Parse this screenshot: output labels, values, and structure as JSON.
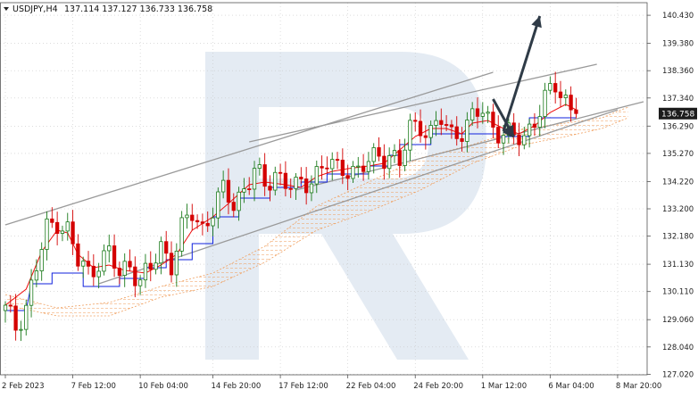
{
  "header": {
    "symbol_label": "USDJPY,H4",
    "ohlc_text": "137.114 137.127 136.733 136.758"
  },
  "colors": {
    "bull_candle": "#1a7a1a",
    "bear_candle": "#d40000",
    "tenkan_sen": "#ee1111",
    "kijun_sen": "#1122dd",
    "kumo": "#f0a060",
    "channel_lines": "#9a9a9a",
    "forecast_arrows": "#2f3b47",
    "price_badge": "#1c1c1c",
    "watermark": "#e4ebf3"
  },
  "chart_data": {
    "type": "candlestick",
    "instrument": "USDJPY",
    "timeframe": "H4",
    "last_price": "136.758",
    "ylim": [
      127.0,
      140.9
    ],
    "y_ticks": [
      "127.020",
      "128.040",
      "129.060",
      "130.110",
      "131.130",
      "132.180",
      "133.200",
      "134.220",
      "135.270",
      "136.290",
      "137.340",
      "138.360",
      "139.380",
      "140.430"
    ],
    "x_ticks": [
      "2 Feb 2023",
      "7 Feb 12:00",
      "10 Feb 04:00",
      "14 Feb 20:00",
      "17 Feb 12:00",
      "22 Feb 04:00",
      "24 Feb 20:00",
      "1 Mar 12:00",
      "6 Mar 04:00",
      "8 Mar 20:00"
    ],
    "close_path": [
      [
        0,
        129.4
      ],
      [
        2,
        128.8
      ],
      [
        4,
        129.6
      ],
      [
        6,
        131.0
      ],
      [
        8,
        132.4
      ],
      [
        10,
        132.8
      ],
      [
        12,
        132.4
      ],
      [
        14,
        131.2
      ],
      [
        16,
        130.8
      ],
      [
        18,
        131.3
      ],
      [
        20,
        131.5
      ],
      [
        22,
        130.7
      ],
      [
        24,
        131.2
      ],
      [
        26,
        130.5
      ],
      [
        28,
        130.9
      ],
      [
        30,
        131.8
      ],
      [
        32,
        131.2
      ],
      [
        34,
        132.4
      ],
      [
        36,
        133.0
      ],
      [
        38,
        132.5
      ],
      [
        40,
        133.2
      ],
      [
        42,
        133.8
      ],
      [
        44,
        133.4
      ],
      [
        46,
        134.0
      ],
      [
        48,
        134.6
      ],
      [
        50,
        134.0
      ],
      [
        52,
        134.6
      ],
      [
        54,
        134.2
      ],
      [
        56,
        133.9
      ],
      [
        58,
        134.2
      ],
      [
        60,
        134.6
      ],
      [
        62,
        134.9
      ],
      [
        64,
        134.6
      ],
      [
        66,
        134.8
      ],
      [
        68,
        134.6
      ],
      [
        70,
        134.9
      ],
      [
        72,
        135.2
      ],
      [
        74,
        135.3
      ],
      [
        76,
        134.8
      ],
      [
        78,
        136.2
      ],
      [
        80,
        136.4
      ],
      [
        82,
        136.0
      ],
      [
        84,
        136.5
      ],
      [
        86,
        136.0
      ],
      [
        88,
        136.2
      ],
      [
        90,
        136.5
      ],
      [
        92,
        136.9
      ],
      [
        94,
        136.3
      ],
      [
        96,
        136.0
      ],
      [
        98,
        135.8
      ],
      [
        100,
        135.9
      ],
      [
        102,
        136.6
      ],
      [
        104,
        137.2
      ],
      [
        106,
        137.8
      ],
      [
        108,
        137.3
      ],
      [
        110,
        136.758
      ]
    ],
    "tenkan_sen": [
      [
        0,
        129.6
      ],
      [
        4,
        130.2
      ],
      [
        7,
        131.6
      ],
      [
        10,
        132.4
      ],
      [
        12,
        132.3
      ],
      [
        14,
        131.5
      ],
      [
        17,
        131.0
      ],
      [
        20,
        131.1
      ],
      [
        23,
        130.9
      ],
      [
        27,
        130.8
      ],
      [
        30,
        131.1
      ],
      [
        33,
        131.5
      ],
      [
        36,
        132.4
      ],
      [
        40,
        132.9
      ],
      [
        43,
        133.4
      ],
      [
        47,
        134.1
      ],
      [
        50,
        134.2
      ],
      [
        54,
        134.1
      ],
      [
        57,
        134.0
      ],
      [
        60,
        134.4
      ],
      [
        63,
        134.6
      ],
      [
        66,
        134.7
      ],
      [
        70,
        134.8
      ],
      [
        73,
        134.9
      ],
      [
        76,
        135.4
      ],
      [
        79,
        135.9
      ],
      [
        82,
        136.2
      ],
      [
        85,
        136.2
      ],
      [
        88,
        136.0
      ],
      [
        90,
        136.4
      ],
      [
        93,
        136.5
      ],
      [
        96,
        136.2
      ],
      [
        99,
        136.0
      ],
      [
        102,
        136.3
      ],
      [
        105,
        136.8
      ],
      [
        108,
        137.1
      ],
      [
        110,
        136.9
      ]
    ],
    "kijun_sen": [
      [
        0,
        129.4
      ],
      [
        4,
        129.4
      ],
      [
        5,
        130.4
      ],
      [
        9,
        130.4
      ],
      [
        9,
        130.8
      ],
      [
        15,
        130.8
      ],
      [
        15,
        130.3
      ],
      [
        22,
        130.3
      ],
      [
        22,
        130.6
      ],
      [
        27,
        130.6
      ],
      [
        27,
        131.0
      ],
      [
        31,
        131.0
      ],
      [
        31,
        131.3
      ],
      [
        36,
        131.3
      ],
      [
        36,
        131.9
      ],
      [
        40,
        131.9
      ],
      [
        40,
        132.9
      ],
      [
        45,
        132.9
      ],
      [
        45,
        133.6
      ],
      [
        51,
        133.6
      ],
      [
        51,
        134.0
      ],
      [
        57,
        134.0
      ],
      [
        57,
        134.2
      ],
      [
        62,
        134.2
      ],
      [
        62,
        134.5
      ],
      [
        70,
        134.5
      ],
      [
        70,
        134.8
      ],
      [
        74,
        134.8
      ],
      [
        74,
        135.2
      ],
      [
        76,
        135.2
      ],
      [
        76,
        135.6
      ],
      [
        82,
        135.6
      ],
      [
        82,
        136.0
      ],
      [
        95,
        136.0
      ],
      [
        95,
        135.9
      ],
      [
        101,
        135.9
      ],
      [
        101,
        136.6
      ],
      [
        110,
        136.6
      ]
    ],
    "kumo_upper": [
      [
        0,
        130.0
      ],
      [
        10,
        129.5
      ],
      [
        20,
        129.7
      ],
      [
        30,
        130.3
      ],
      [
        40,
        130.8
      ],
      [
        50,
        131.8
      ],
      [
        60,
        133.3
      ],
      [
        70,
        134.2
      ],
      [
        80,
        135.1
      ],
      [
        90,
        135.6
      ],
      [
        100,
        136.2
      ],
      [
        108,
        136.4
      ],
      [
        115,
        136.6
      ],
      [
        120,
        137.0
      ]
    ],
    "kumo_lower": [
      [
        0,
        129.6
      ],
      [
        10,
        129.2
      ],
      [
        20,
        129.2
      ],
      [
        30,
        129.9
      ],
      [
        40,
        130.3
      ],
      [
        50,
        131.2
      ],
      [
        60,
        132.4
      ],
      [
        70,
        133.1
      ],
      [
        80,
        133.9
      ],
      [
        90,
        134.9
      ],
      [
        100,
        135.6
      ],
      [
        108,
        135.9
      ],
      [
        115,
        136.2
      ],
      [
        120,
        136.6
      ]
    ],
    "channel_lines": [
      {
        "from": [
          0,
          132.6
        ],
        "to": [
          94,
          138.3
        ]
      },
      {
        "from": [
          47,
          135.7
        ],
        "to": [
          114,
          138.6
        ]
      },
      {
        "from": [
          56,
          133.9
        ],
        "to": [
          123,
          137.2
        ]
      },
      {
        "from": [
          18,
          130.4
        ],
        "to": [
          118,
          136.9
        ]
      }
    ],
    "forecast_path": [
      [
        96,
        136.1
      ],
      [
        103,
        140.4
      ]
    ],
    "forecast_pullback": [
      [
        94,
        137.3
      ],
      [
        98,
        135.9
      ]
    ],
    "annotations": {
      "watermark": "R"
    }
  }
}
